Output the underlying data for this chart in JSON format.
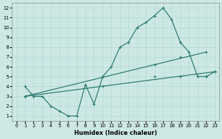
{
  "xlabel": "Humidex (Indice chaleur)",
  "bg_color": "#cde8e4",
  "grid_color": "#b0d8d2",
  "line_color": "#2a7a6e",
  "xlim": [
    -0.5,
    23.5
  ],
  "ylim": [
    0.5,
    12.5
  ],
  "xticks": [
    0,
    1,
    2,
    3,
    4,
    5,
    6,
    7,
    8,
    9,
    10,
    11,
    12,
    13,
    14,
    15,
    16,
    17,
    18,
    19,
    20,
    21,
    22,
    23
  ],
  "yticks": [
    1,
    2,
    3,
    4,
    5,
    6,
    7,
    8,
    9,
    10,
    11,
    12
  ],
  "line1_x": [
    1,
    2,
    3,
    4,
    5,
    6,
    7,
    8,
    9,
    10,
    11,
    12,
    13,
    14,
    15,
    16,
    17,
    18,
    19,
    20,
    21,
    22,
    23
  ],
  "line1_y": [
    4.0,
    3.0,
    3.0,
    2.0,
    1.5,
    1.0,
    1.0,
    4.2,
    2.2,
    5.0,
    6.0,
    8.0,
    8.5,
    10.0,
    10.5,
    11.2,
    12.0,
    10.8,
    8.5,
    7.5,
    5.0,
    5.0,
    5.5
  ],
  "line2_x": [
    1,
    22
  ],
  "line2_y": [
    3.0,
    7.5
  ],
  "line3_x": [
    1,
    23
  ],
  "line3_y": [
    3.0,
    5.5
  ],
  "line2_markers_x": [
    1,
    10,
    16,
    19,
    22
  ],
  "line2_markers_y": [
    3.0,
    5.0,
    6.2,
    7.0,
    7.5
  ],
  "line3_markers_x": [
    1,
    10,
    16,
    19,
    22,
    23
  ],
  "line3_markers_y": [
    3.0,
    4.0,
    5.0,
    5.0,
    5.0,
    5.5
  ]
}
